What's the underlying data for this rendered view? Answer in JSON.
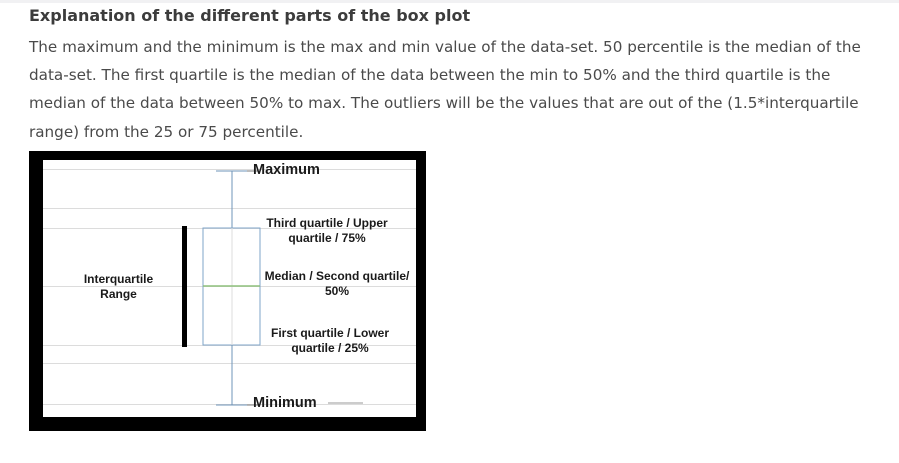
{
  "heading": "Explanation of the different parts of the box plot",
  "paragraph_lines": [
    "The maximum and the minimum is the max and min value of the data-set. 50 percentile is the median of the",
    "data-set. The first quartile is the median of the data between the min to 50% and the third quartile is the",
    "median of the data between 50% to max. The outliers will be the values that are out of the (1.5*interquartile",
    "range) from the 25 or 75 percentile."
  ],
  "diagram": {
    "maximum": "Maximum",
    "third_quartile": [
      "Third quartile / Upper",
      "quartile / 75%"
    ],
    "median": [
      "Median  / Second quartile/",
      "50%"
    ],
    "first_quartile": [
      "First quartile / Lower",
      "quartile / 25%"
    ],
    "minimum": "Minimum",
    "iqr": [
      "Interquartile",
      "Range"
    ]
  },
  "colors": {
    "box_stroke": "#7fa5c8",
    "median_line": "#8ec07c",
    "whisker": "#6f94b8",
    "frame": "#000000"
  }
}
